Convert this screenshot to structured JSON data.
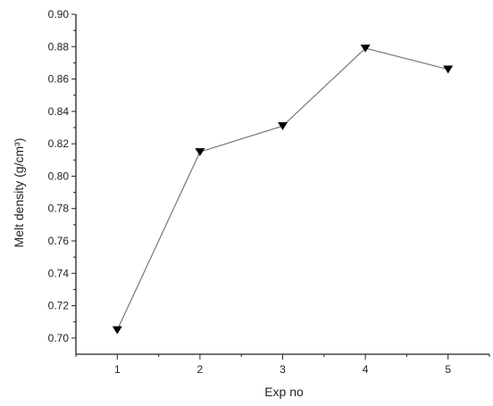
{
  "chart_data": {
    "type": "line",
    "title": "",
    "xlabel": "Exp no",
    "ylabel": "Melt density (g/cm³)",
    "x": [
      1,
      2,
      3,
      4,
      5
    ],
    "series": [
      {
        "values": [
          0.705,
          0.815,
          0.831,
          0.879,
          0.866
        ]
      }
    ],
    "xlim": [
      0.5,
      5.5
    ],
    "ylim": [
      0.69,
      0.9
    ],
    "xticks": [
      "1",
      "2",
      "3",
      "4",
      "5"
    ],
    "yticks": [
      "0.70",
      "0.72",
      "0.74",
      "0.76",
      "0.78",
      "0.80",
      "0.82",
      "0.84",
      "0.86",
      "0.88",
      "0.90"
    ],
    "marker": "triangle-down",
    "line_color": "#777777",
    "marker_color": "#000000",
    "grid": false,
    "legend": "none"
  }
}
